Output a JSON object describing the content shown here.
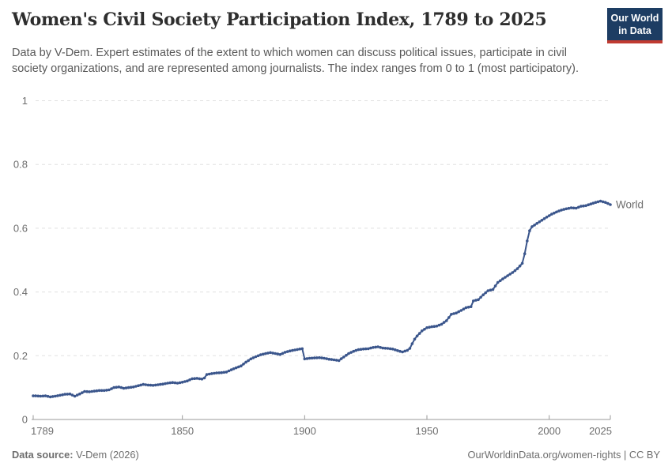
{
  "header": {
    "title": "Women's Civil Society Participation Index, 1789 to 2025",
    "subtitle": "Data by V-Dem. Expert estimates of the extent to which women can discuss political issues, participate in civil society organizations, and are represented among journalists. The index ranges from 0 to 1 (most participatory).",
    "logo": {
      "line1": "Our World",
      "line2": "in Data",
      "bg_color": "#1d3d63",
      "bar_color": "#c03a31"
    }
  },
  "chart_data": {
    "type": "line",
    "title": "Women's Civil Society Participation Index, 1789 to 2025",
    "xlabel": "",
    "ylabel": "",
    "xlim": [
      1789,
      2025
    ],
    "ylim": [
      0,
      1
    ],
    "grid": "horizontal-dashed",
    "legend_position": "end-of-line",
    "xticks": [
      {
        "year": 1789,
        "label": "1789"
      },
      {
        "year": 1850,
        "label": "1850"
      },
      {
        "year": 1900,
        "label": "1900"
      },
      {
        "year": 1950,
        "label": "1950"
      },
      {
        "year": 2000,
        "label": "2000"
      },
      {
        "year": 2025,
        "label": "2025"
      }
    ],
    "yticks": [
      {
        "value": 0,
        "label": "0"
      },
      {
        "value": 0.2,
        "label": "0.2"
      },
      {
        "value": 0.4,
        "label": "0.4"
      },
      {
        "value": 0.6,
        "label": "0.6"
      },
      {
        "value": 0.8,
        "label": "0.8"
      },
      {
        "value": 1,
        "label": "1"
      }
    ],
    "series": [
      {
        "name": "World",
        "color": "#3b568c",
        "label_color": "#4d6ba8",
        "points": [
          [
            1789,
            0.074
          ],
          [
            1790,
            0.074
          ],
          [
            1792,
            0.073
          ],
          [
            1794,
            0.074
          ],
          [
            1796,
            0.071
          ],
          [
            1798,
            0.073
          ],
          [
            1800,
            0.076
          ],
          [
            1802,
            0.079
          ],
          [
            1804,
            0.08
          ],
          [
            1806,
            0.073
          ],
          [
            1808,
            0.08
          ],
          [
            1810,
            0.088
          ],
          [
            1812,
            0.087
          ],
          [
            1814,
            0.089
          ],
          [
            1816,
            0.091
          ],
          [
            1818,
            0.091
          ],
          [
            1820,
            0.093
          ],
          [
            1822,
            0.1
          ],
          [
            1824,
            0.102
          ],
          [
            1826,
            0.098
          ],
          [
            1828,
            0.1
          ],
          [
            1830,
            0.102
          ],
          [
            1832,
            0.106
          ],
          [
            1834,
            0.11
          ],
          [
            1836,
            0.108
          ],
          [
            1838,
            0.107
          ],
          [
            1840,
            0.109
          ],
          [
            1842,
            0.111
          ],
          [
            1844,
            0.114
          ],
          [
            1846,
            0.116
          ],
          [
            1848,
            0.114
          ],
          [
            1850,
            0.117
          ],
          [
            1852,
            0.121
          ],
          [
            1854,
            0.128
          ],
          [
            1856,
            0.129
          ],
          [
            1858,
            0.127
          ],
          [
            1859,
            0.13
          ],
          [
            1860,
            0.141
          ],
          [
            1862,
            0.144
          ],
          [
            1864,
            0.146
          ],
          [
            1866,
            0.147
          ],
          [
            1868,
            0.149
          ],
          [
            1870,
            0.156
          ],
          [
            1872,
            0.162
          ],
          [
            1874,
            0.168
          ],
          [
            1876,
            0.18
          ],
          [
            1878,
            0.19
          ],
          [
            1880,
            0.197
          ],
          [
            1882,
            0.203
          ],
          [
            1884,
            0.207
          ],
          [
            1886,
            0.21
          ],
          [
            1888,
            0.207
          ],
          [
            1890,
            0.204
          ],
          [
            1892,
            0.211
          ],
          [
            1894,
            0.215
          ],
          [
            1896,
            0.218
          ],
          [
            1898,
            0.221
          ],
          [
            1899,
            0.222
          ],
          [
            1900,
            0.19
          ],
          [
            1902,
            0.192
          ],
          [
            1904,
            0.193
          ],
          [
            1906,
            0.194
          ],
          [
            1908,
            0.192
          ],
          [
            1910,
            0.189
          ],
          [
            1912,
            0.187
          ],
          [
            1914,
            0.185
          ],
          [
            1916,
            0.196
          ],
          [
            1918,
            0.207
          ],
          [
            1920,
            0.214
          ],
          [
            1922,
            0.219
          ],
          [
            1924,
            0.221
          ],
          [
            1926,
            0.222
          ],
          [
            1928,
            0.226
          ],
          [
            1930,
            0.228
          ],
          [
            1932,
            0.224
          ],
          [
            1934,
            0.223
          ],
          [
            1936,
            0.221
          ],
          [
            1938,
            0.216
          ],
          [
            1940,
            0.212
          ],
          [
            1942,
            0.217
          ],
          [
            1943,
            0.223
          ],
          [
            1944,
            0.238
          ],
          [
            1945,
            0.252
          ],
          [
            1946,
            0.262
          ],
          [
            1948,
            0.278
          ],
          [
            1950,
            0.288
          ],
          [
            1952,
            0.291
          ],
          [
            1954,
            0.293
          ],
          [
            1956,
            0.299
          ],
          [
            1958,
            0.31
          ],
          [
            1960,
            0.33
          ],
          [
            1962,
            0.334
          ],
          [
            1964,
            0.342
          ],
          [
            1966,
            0.351
          ],
          [
            1968,
            0.354
          ],
          [
            1969,
            0.372
          ],
          [
            1971,
            0.376
          ],
          [
            1973,
            0.391
          ],
          [
            1975,
            0.404
          ],
          [
            1977,
            0.408
          ],
          [
            1979,
            0.43
          ],
          [
            1981,
            0.441
          ],
          [
            1983,
            0.451
          ],
          [
            1985,
            0.461
          ],
          [
            1987,
            0.473
          ],
          [
            1989,
            0.49
          ],
          [
            1990,
            0.52
          ],
          [
            1991,
            0.56
          ],
          [
            1992,
            0.592
          ],
          [
            1993,
            0.605
          ],
          [
            1995,
            0.615
          ],
          [
            1997,
            0.625
          ],
          [
            1999,
            0.635
          ],
          [
            2001,
            0.644
          ],
          [
            2003,
            0.651
          ],
          [
            2005,
            0.657
          ],
          [
            2007,
            0.661
          ],
          [
            2009,
            0.664
          ],
          [
            2011,
            0.663
          ],
          [
            2013,
            0.669
          ],
          [
            2015,
            0.671
          ],
          [
            2017,
            0.676
          ],
          [
            2019,
            0.681
          ],
          [
            2021,
            0.685
          ],
          [
            2023,
            0.681
          ],
          [
            2025,
            0.674
          ]
        ]
      }
    ]
  },
  "footer": {
    "source_label": "Data source:",
    "source_value": "V-Dem (2026)",
    "right_text": "OurWorldinData.org/women-rights | CC BY"
  }
}
